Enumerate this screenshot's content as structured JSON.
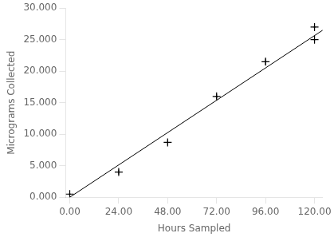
{
  "chart_data": {
    "type": "scatter",
    "xlabel": "Hours Sampled",
    "ylabel": "Micrograms Collected",
    "series": [
      {
        "type": "line",
        "line_style": "solid",
        "color": "#000000",
        "x": [
          0,
          124
        ],
        "values": [
          0,
          26500
        ]
      },
      {
        "type": "scatter",
        "marker": "+",
        "color": "#000000",
        "x": [
          0,
          24,
          48,
          72,
          96,
          120,
          120
        ],
        "values": [
          500,
          4000,
          8700,
          16000,
          21500,
          27000,
          25000
        ],
        "xerr": [
          0.5,
          0.5,
          0.5,
          0.5,
          0.5,
          0.5,
          0.5
        ],
        "yerr": [
          300,
          400,
          400,
          400,
          500,
          500,
          500
        ]
      }
    ],
    "xlim": [
      -2,
      124
    ],
    "ylim": [
      0,
      30000
    ],
    "xticks": [
      {
        "value": 0,
        "label": "0.00"
      },
      {
        "value": 24,
        "label": "24.00"
      },
      {
        "value": 48,
        "label": "48.00"
      },
      {
        "value": 72,
        "label": "72.00"
      },
      {
        "value": 96,
        "label": "96.00"
      },
      {
        "value": 120,
        "label": "120.00"
      }
    ],
    "yticks": [
      {
        "value": 0,
        "label": "0.000"
      },
      {
        "value": 5000,
        "label": "5.000"
      },
      {
        "value": 10000,
        "label": "10.000"
      },
      {
        "value": 15000,
        "label": "15.000"
      },
      {
        "value": 20000,
        "label": "20.000"
      },
      {
        "value": 25000,
        "label": "25.000"
      },
      {
        "value": 30000,
        "label": "30.000"
      }
    ],
    "grid": false
  }
}
